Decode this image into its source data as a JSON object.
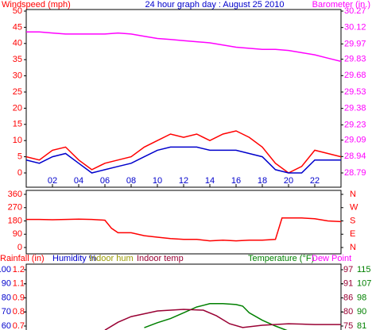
{
  "chart_data": [
    {
      "type": "line",
      "title": "24 hour graph day : August 25 2010",
      "y_label": "Windspeed (mph)",
      "y2_label": "Barometer (in.)",
      "axis_colors": {
        "y": "#ff0000",
        "y2": "#ff00ff"
      },
      "x": [
        0,
        1,
        2,
        3,
        4,
        5,
        6,
        7,
        8,
        9,
        10,
        11,
        12,
        13,
        14,
        15,
        16,
        17,
        18,
        19,
        20,
        21,
        22,
        23,
        24
      ],
      "series": [
        {
          "color": "#ff0000",
          "values": [
            5,
            4,
            7,
            8,
            4,
            1,
            3,
            4,
            5,
            8,
            10,
            12,
            11,
            12,
            10,
            12,
            13,
            11,
            8,
            3,
            0,
            2,
            7,
            6,
            5
          ]
        },
        {
          "color": "#0000cc",
          "values": [
            4,
            3,
            5,
            6,
            3,
            0,
            1,
            2,
            3,
            5,
            7,
            8,
            8,
            8,
            7,
            7,
            7,
            6,
            5,
            1,
            0,
            0,
            4,
            4,
            4
          ]
        },
        {
          "color": "#ff00ff",
          "axis": "y2",
          "values": [
            30.08,
            30.08,
            30.07,
            30.06,
            30.06,
            30.06,
            30.06,
            30.07,
            30.06,
            30.04,
            30.02,
            30.01,
            30.0,
            29.99,
            29.98,
            29.96,
            29.94,
            29.93,
            29.92,
            29.92,
            29.91,
            29.89,
            29.87,
            29.84,
            29.81
          ]
        }
      ],
      "xlim": [
        0,
        24
      ],
      "xticks": [
        {
          "value": 2,
          "label": "02"
        },
        {
          "value": 4,
          "label": "04"
        },
        {
          "value": 6,
          "label": "06"
        },
        {
          "value": 8,
          "label": "08"
        },
        {
          "value": 10,
          "label": "10"
        },
        {
          "value": 12,
          "label": "12"
        },
        {
          "value": 14,
          "label": "14"
        },
        {
          "value": 16,
          "label": "16"
        },
        {
          "value": 18,
          "label": "18"
        },
        {
          "value": 20,
          "label": "20"
        },
        {
          "value": 22,
          "label": "22"
        }
      ],
      "ylim": [
        0,
        50
      ],
      "yticks": [
        0,
        5,
        10,
        15,
        20,
        25,
        30,
        35,
        40,
        45,
        50
      ],
      "y2lim": [
        28.79,
        30.27
      ],
      "y2ticks": [
        28.79,
        28.94,
        29.09,
        29.23,
        29.38,
        29.53,
        29.68,
        29.83,
        29.97,
        30.12,
        30.27
      ]
    },
    {
      "type": "line",
      "axis_colors": {
        "y": "#ff0000",
        "y2": "#ff0000"
      },
      "x": [
        0,
        1,
        2,
        3,
        4,
        5,
        6,
        6.5,
        7,
        8,
        9,
        10,
        11,
        12,
        13,
        14,
        15,
        16,
        17,
        18,
        19,
        19.5,
        20,
        21,
        22,
        23,
        24
      ],
      "series": [
        {
          "color": "#ff0000",
          "values": [
            190,
            190,
            188,
            190,
            192,
            190,
            185,
            130,
            100,
            100,
            80,
            70,
            60,
            55,
            55,
            45,
            50,
            45,
            50,
            50,
            55,
            200,
            200,
            200,
            195,
            180,
            175
          ]
        }
      ],
      "xlim": [
        0,
        24
      ],
      "ylim": [
        0,
        360
      ],
      "yticks": [
        0,
        90,
        180,
        270,
        360
      ],
      "y2lim": [
        0,
        360
      ],
      "y2ticks": [
        {
          "value": 0,
          "label": "N"
        },
        {
          "value": 90,
          "label": "E"
        },
        {
          "value": 180,
          "label": "S"
        },
        {
          "value": 270,
          "label": "W"
        },
        {
          "value": 360,
          "label": "N"
        }
      ]
    },
    {
      "type": "line",
      "legend": [
        {
          "text": "Rainfall (in)",
          "color": "#ff0000"
        },
        {
          "text": "Humidity %",
          "color": "#0000cc"
        },
        {
          "text": "Indoor hum",
          "color": "#999900"
        },
        {
          "text": "Indoor temp",
          "color": "#990033"
        },
        {
          "text": "Temperature (°F)",
          "color": "#008000"
        },
        {
          "text": "Dew Point",
          "color": "#ff00ff"
        }
      ],
      "axis_colors": {
        "y": "#0000cc",
        "y2": "#990033",
        "y3": "#ff0000",
        "y4": "#008000"
      },
      "series": [
        {
          "color": "#008000",
          "axis": "y4",
          "x": [
            9,
            10,
            11,
            12,
            13,
            14,
            15,
            16,
            16.5,
            17,
            18,
            19,
            20
          ],
          "values": [
            80,
            83,
            85.5,
            89,
            92.5,
            94.5,
            94.5,
            94,
            93,
            89,
            84.5,
            81,
            78
          ]
        },
        {
          "color": "#990033",
          "axis": "y2",
          "x": [
            6,
            7,
            8,
            10,
            12,
            13.5,
            14.5,
            15.5,
            16.5,
            18,
            20,
            22,
            24
          ],
          "values": [
            73.4,
            76.5,
            78.7,
            80.9,
            81.5,
            81.2,
            79,
            75.9,
            74.4,
            75.3,
            75.9,
            75.6,
            75.6
          ]
        }
      ],
      "xlim": [
        0,
        24
      ],
      "ylim": [
        60,
        100
      ],
      "yticks": [
        60,
        70,
        80,
        90,
        100
      ],
      "y3lim": [
        0.7,
        1.2
      ],
      "y3ticks": [
        {
          "value": 0.7,
          "label": "0.7"
        },
        {
          "value": 0.825,
          "label": "0.8"
        },
        {
          "value": 0.95,
          "label": "0.9"
        },
        {
          "value": 1.075,
          "label": "1.1"
        },
        {
          "value": 1.2,
          "label": "1.2"
        }
      ],
      "y2lim": [
        75,
        97
      ],
      "y2ticks": [
        {
          "value": 75,
          "label": "75"
        },
        {
          "value": 80.5,
          "label": "80"
        },
        {
          "value": 86,
          "label": "86"
        },
        {
          "value": 91.5,
          "label": "91"
        },
        {
          "value": 97,
          "label": "97"
        }
      ],
      "y4lim": [
        81,
        115
      ],
      "y4ticks": [
        {
          "value": 81,
          "label": "81"
        },
        {
          "value": 89.5,
          "label": "90"
        },
        {
          "value": 98,
          "label": "98"
        },
        {
          "value": 106.5,
          "label": "107"
        },
        {
          "value": 115,
          "label": "115"
        }
      ]
    }
  ]
}
